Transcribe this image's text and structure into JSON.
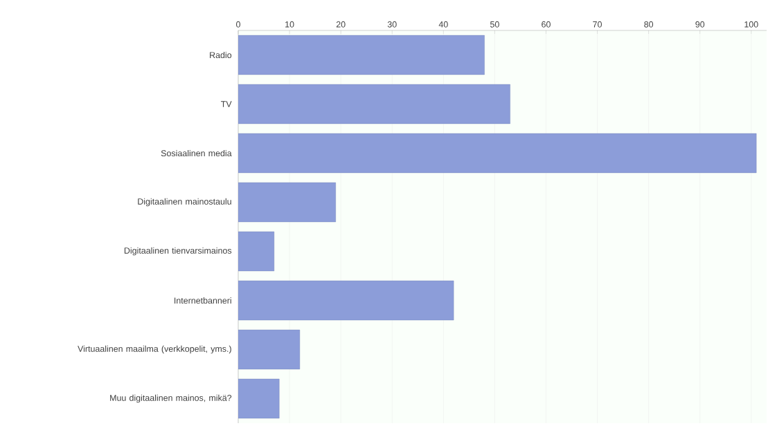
{
  "chart_data": {
    "type": "bar",
    "orientation": "horizontal",
    "categories": [
      "Radio",
      "TV",
      "Sosiaalinen media",
      "Digitaalinen mainostaulu",
      "Digitaalinen tienvarsimainos",
      "Internetbanneri",
      "Virtuaalinen maailma (verkkopelit, yms.)",
      "Muu digitaalinen mainos, mikä?"
    ],
    "values": [
      48,
      53,
      101,
      19,
      7,
      42,
      12,
      8
    ],
    "color": "#8c9dd9",
    "xlim": [
      0,
      103
    ],
    "xticks": [
      0,
      10,
      20,
      30,
      40,
      50,
      60,
      70,
      80,
      90,
      100
    ],
    "grid": "x"
  }
}
